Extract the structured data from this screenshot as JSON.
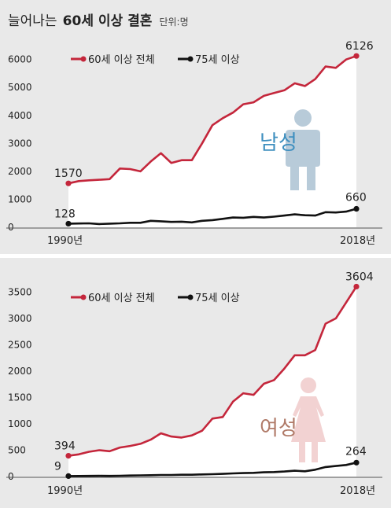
{
  "header": {
    "title": "늘어나는",
    "title_bold": "60세 이상 결혼",
    "unit": "단위:명"
  },
  "colors": {
    "red_line": "#c4263b",
    "black_line": "#111111",
    "panel_bg": "#e9e9e9",
    "area_fill": "#ffffff",
    "male_text": "#3e8fbf",
    "male_icon": "#b8cbd9",
    "female_text": "#b07a68",
    "female_icon": "#f2d2d2"
  },
  "chart_data": [
    {
      "type": "line",
      "icon": "male-icon",
      "gender_label": "남성",
      "legend": [
        "60세 이상 전체",
        "75세 이상"
      ],
      "ylim": [
        0,
        6300
      ],
      "yticks": [
        0,
        1000,
        2000,
        3000,
        4000,
        5000,
        6000
      ],
      "x_start_label": "1990년",
      "x_end_label": "2018년",
      "x": [
        1990,
        1991,
        1992,
        1993,
        1994,
        1995,
        1996,
        1997,
        1998,
        1999,
        2000,
        2001,
        2002,
        2003,
        2004,
        2005,
        2006,
        2007,
        2008,
        2009,
        2010,
        2011,
        2012,
        2013,
        2014,
        2015,
        2016,
        2017,
        2018
      ],
      "series": [
        {
          "name": "60세 이상 전체",
          "values": [
            1570,
            1650,
            1680,
            1700,
            1720,
            2100,
            2080,
            2000,
            2350,
            2650,
            2300,
            2400,
            2400,
            3000,
            3650,
            3900,
            4100,
            4400,
            4470,
            4700,
            4800,
            4900,
            5150,
            5050,
            5300,
            5750,
            5700,
            6000,
            6126
          ],
          "start_label": "1570",
          "end_label": "6126"
        },
        {
          "name": "75세 이상",
          "values": [
            128,
            135,
            140,
            115,
            130,
            140,
            160,
            160,
            230,
            215,
            190,
            200,
            175,
            230,
            255,
            300,
            350,
            340,
            370,
            350,
            380,
            420,
            460,
            430,
            420,
            540,
            530,
            560,
            660
          ],
          "start_label": "128",
          "end_label": "660"
        }
      ]
    },
    {
      "type": "line",
      "icon": "female-icon",
      "gender_label": "여성",
      "legend": [
        "60세 이상 전체",
        "75세 이상"
      ],
      "ylim": [
        0,
        3700
      ],
      "yticks": [
        0,
        500,
        1000,
        1500,
        2000,
        2500,
        3000,
        3500
      ],
      "x_start_label": "1990년",
      "x_end_label": "2018년",
      "x": [
        1990,
        1991,
        1992,
        1993,
        1994,
        1995,
        1996,
        1997,
        1998,
        1999,
        2000,
        2001,
        2002,
        2003,
        2004,
        2005,
        2006,
        2007,
        2008,
        2009,
        2010,
        2011,
        2012,
        2013,
        2014,
        2015,
        2016,
        2017,
        2018
      ],
      "series": [
        {
          "name": "60세 이상 전체",
          "values": [
            394,
            420,
            470,
            500,
            480,
            550,
            580,
            620,
            700,
            820,
            760,
            740,
            780,
            870,
            1100,
            1130,
            1420,
            1580,
            1550,
            1760,
            1830,
            2050,
            2300,
            2300,
            2400,
            2900,
            3000,
            3300,
            3604
          ],
          "start_label": "394",
          "end_label": "3604"
        },
        {
          "name": "75세 이상",
          "values": [
            9,
            10,
            12,
            14,
            12,
            15,
            20,
            22,
            25,
            30,
            30,
            35,
            35,
            40,
            45,
            50,
            60,
            65,
            70,
            80,
            85,
            95,
            110,
            100,
            130,
            180,
            200,
            220,
            264
          ],
          "start_label": "9",
          "end_label": "264"
        }
      ]
    }
  ]
}
